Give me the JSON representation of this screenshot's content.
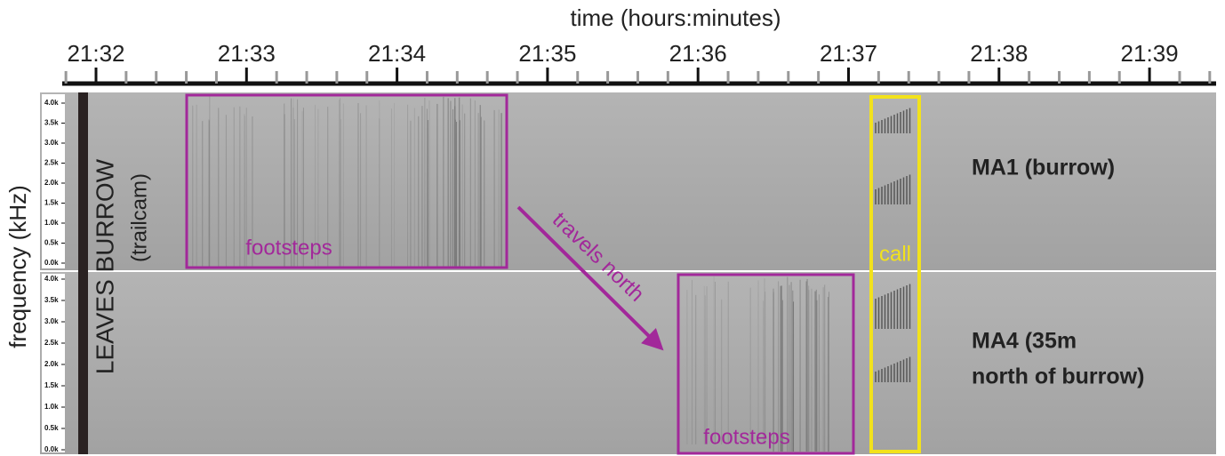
{
  "time_axis": {
    "title": "time (hours:minutes)",
    "ticks": [
      "21:32",
      "21:33",
      "21:34",
      "21:35",
      "21:36",
      "21:37",
      "21:38",
      "21:39"
    ]
  },
  "frequency_axis": {
    "title": "frequency (kHz)",
    "ticks": [
      "4.0k",
      "3.5k",
      "3.0k",
      "2.5k",
      "2.0k",
      "1.5k",
      "1.0k",
      "0.5k",
      "0.0k"
    ]
  },
  "panels": [
    {
      "label_lines": [
        "MA1 (burrow)"
      ]
    },
    {
      "label_lines": [
        "MA4 (35m",
        "north of burrow)"
      ]
    }
  ],
  "annotations": {
    "event_lines": [
      "LEAVES BURROW",
      "(trailcam)"
    ],
    "footsteps_top": "footsteps",
    "footsteps_bottom": "footsteps",
    "travel": "travels north",
    "call": "call"
  }
}
